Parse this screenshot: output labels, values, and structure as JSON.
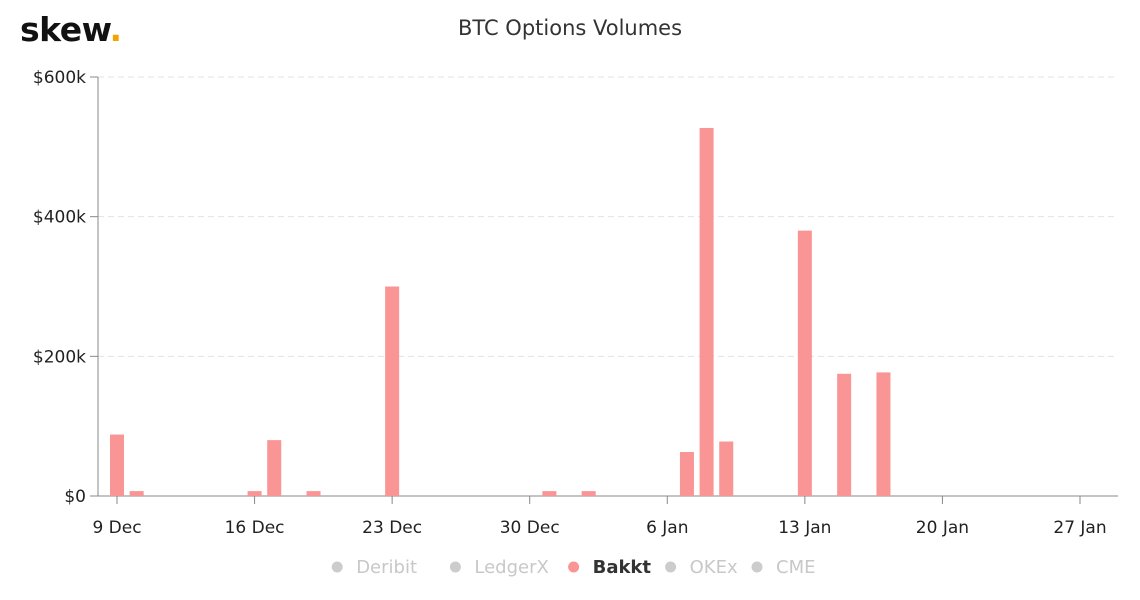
{
  "brand": {
    "name": "skew",
    "dot": "."
  },
  "chart_data": {
    "type": "bar",
    "title": "BTC Options Volumes",
    "y_ticks": [
      "$0",
      "$200k",
      "$400k",
      "$600k"
    ],
    "y_tick_values": [
      0,
      200000,
      400000,
      600000
    ],
    "ylim": [
      0,
      600000
    ],
    "x_ticks": [
      "9 Dec",
      "16 Dec",
      "23 Dec",
      "30 Dec",
      "6 Jan",
      "13 Jan",
      "20 Jan",
      "27 Jan"
    ],
    "x_tick_dates": [
      "2019-12-09",
      "2019-12-16",
      "2019-12-23",
      "2019-12-30",
      "2020-01-06",
      "2020-01-13",
      "2020-01-20",
      "2020-01-27"
    ],
    "x_range": [
      "2019-12-09",
      "2020-01-27"
    ],
    "grid": true,
    "legend_position": "bottom",
    "colors": {
      "Bakkt": "#f99595",
      "inactive": "#cccccc"
    },
    "series": [
      {
        "name": "Bakkt",
        "active": true,
        "points": [
          {
            "date": "2019-12-09",
            "value": 88000
          },
          {
            "date": "2019-12-10",
            "value": 7000
          },
          {
            "date": "2019-12-16",
            "value": 7000
          },
          {
            "date": "2019-12-17",
            "value": 80000
          },
          {
            "date": "2019-12-19",
            "value": 7000
          },
          {
            "date": "2019-12-23",
            "value": 300000
          },
          {
            "date": "2019-12-31",
            "value": 7000
          },
          {
            "date": "2020-01-02",
            "value": 7000
          },
          {
            "date": "2020-01-07",
            "value": 63000
          },
          {
            "date": "2020-01-08",
            "value": 527000
          },
          {
            "date": "2020-01-09",
            "value": 78000
          },
          {
            "date": "2020-01-13",
            "value": 380000
          },
          {
            "date": "2020-01-15",
            "value": 175000
          },
          {
            "date": "2020-01-17",
            "value": 177000
          }
        ]
      }
    ],
    "legend": [
      {
        "name": "Deribit",
        "active": false
      },
      {
        "name": "LedgerX",
        "active": false
      },
      {
        "name": "Bakkt",
        "active": true
      },
      {
        "name": "OKEx",
        "active": false
      },
      {
        "name": "CME",
        "active": false
      }
    ]
  }
}
